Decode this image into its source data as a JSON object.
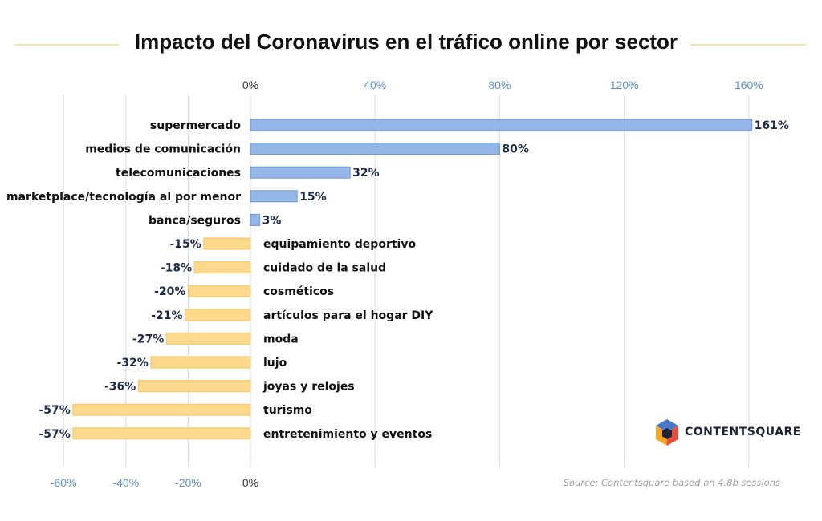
{
  "chart_data": {
    "type": "bar",
    "orientation": "horizontal",
    "title": "Impacto del Coronavirus en el tráfico online por sector",
    "top_ticks": [
      "0%",
      "40%",
      "80%",
      "120%",
      "160%"
    ],
    "top_tick_values": [
      0,
      40,
      80,
      120,
      160
    ],
    "bottom_ticks": [
      "-60%",
      "-40%",
      "-20%",
      "0%"
    ],
    "bottom_tick_values": [
      -60,
      -40,
      -20,
      0
    ],
    "xlim": [
      -60,
      160
    ],
    "grid": true,
    "categories": [
      "supermercado",
      "medios de comunicación",
      "telecomunicaciones",
      "marketplace/tecnología al por menor",
      "banca/seguros",
      "equipamiento deportivo",
      "cuidado de  la salud",
      "cosméticos",
      "artículos para el hogar DIY",
      "moda",
      "lujo",
      "joyas y relojes",
      "turismo",
      "entretenimiento y eventos"
    ],
    "values": [
      161,
      80,
      32,
      15,
      3,
      -15,
      -18,
      -20,
      -21,
      -27,
      -32,
      -36,
      -57,
      -57
    ],
    "value_labels": [
      "161%",
      "80%",
      "32%",
      "15%",
      "3%",
      "-15%",
      "-18%",
      "-20%",
      "-21%",
      "-27%",
      "-32%",
      "-36%",
      "-57%",
      "-57%"
    ],
    "colors": {
      "positive": "#93b6e6",
      "positive_stroke": "#6f97d2",
      "negative": "#fcd98c",
      "negative_stroke": "#f4c566",
      "grid": "#d9dde3",
      "title_rule": "#f4d890"
    }
  },
  "source": "Source: Contentsquare based on 4.8b sessions",
  "brand": {
    "name": "CONTENTSQUARE",
    "logo_icon": "contentsquare-hexagon-logo-icon",
    "colors": [
      "#f5a623",
      "#4a78c9",
      "#e74c3c",
      "#1d2333"
    ]
  }
}
